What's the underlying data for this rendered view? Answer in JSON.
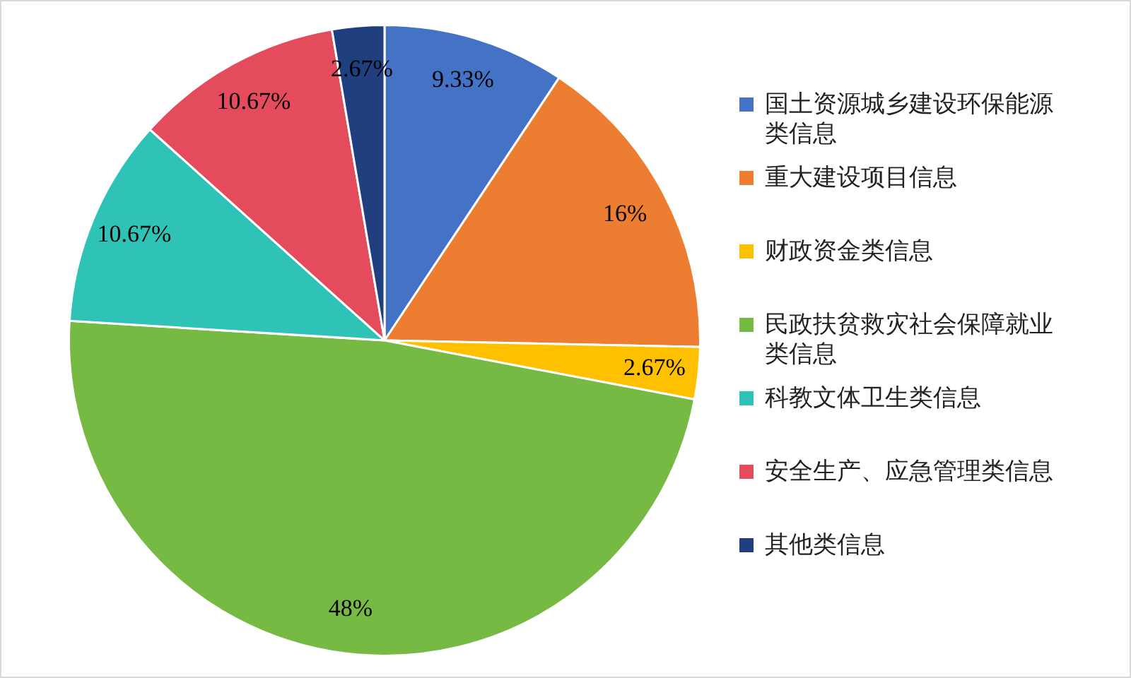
{
  "chart_data": {
    "type": "pie",
    "categories": [
      "国土资源城乡建设环保能源类信息",
      "重大建设项目信息",
      "财政资金类信息",
      "民政扶贫救灾社会保障就业类信息",
      "科教文体卫生类信息",
      "安全生产、应急管理类信息",
      "其他类信息"
    ],
    "values": [
      9.33,
      16,
      2.67,
      48,
      10.67,
      10.67,
      2.67
    ],
    "colors": [
      "#4472c4",
      "#ed7d31",
      "#ffc000",
      "#76b943",
      "#2fc2b6",
      "#e44c5e",
      "#203f7f"
    ],
    "value_labels": [
      "9.33%",
      "16%",
      "2.67%",
      "48%",
      "10.67%",
      "10.67%",
      "2.67%"
    ],
    "legend": "right"
  }
}
